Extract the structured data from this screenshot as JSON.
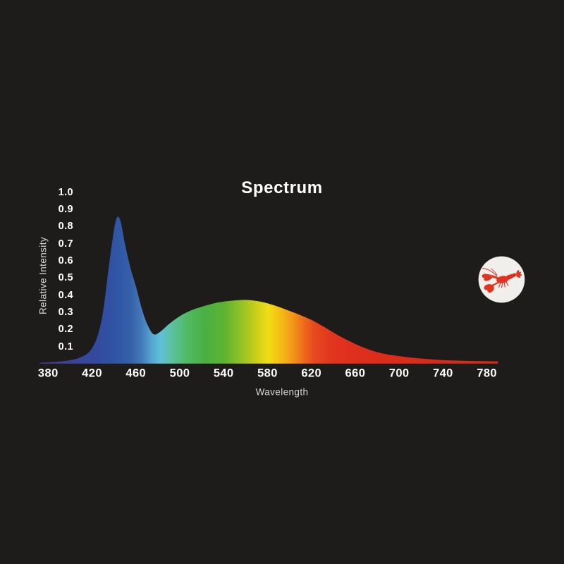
{
  "page": {
    "background": "#1e1c1b"
  },
  "text_colors": {
    "title": "#ffffff",
    "ticks": "#ffffff",
    "axis_titles": "#d8d6d3"
  },
  "chart_data": {
    "type": "area",
    "title": "Spectrum",
    "xlabel": "Wavelength",
    "ylabel": "Relative Intensity",
    "xlim": [
      372,
      790
    ],
    "ylim": [
      0,
      1.0
    ],
    "grid": false,
    "legend": false,
    "x_ticks": [
      "380",
      "420",
      "460",
      "500",
      "540",
      "580",
      "620",
      "660",
      "700",
      "740",
      "780"
    ],
    "y_ticks": [
      "1.0",
      "0.9",
      "0.8",
      "0.7",
      "0.6",
      "0.5",
      "0.4",
      "0.3",
      "0.2",
      "0.1"
    ],
    "series": [
      {
        "name": "relative-spectral-intensity",
        "fill": "wavelength-rainbow-gradient",
        "points": [
          [
            372,
            0.004
          ],
          [
            380,
            0.008
          ],
          [
            390,
            0.012
          ],
          [
            400,
            0.02
          ],
          [
            408,
            0.033
          ],
          [
            415,
            0.055
          ],
          [
            420,
            0.09
          ],
          [
            425,
            0.16
          ],
          [
            430,
            0.3
          ],
          [
            435,
            0.55
          ],
          [
            440,
            0.78
          ],
          [
            443,
            0.855
          ],
          [
            446,
            0.83
          ],
          [
            450,
            0.7
          ],
          [
            455,
            0.56
          ],
          [
            460,
            0.45
          ],
          [
            465,
            0.33
          ],
          [
            470,
            0.235
          ],
          [
            476,
            0.172
          ],
          [
            482,
            0.185
          ],
          [
            490,
            0.23
          ],
          [
            500,
            0.277
          ],
          [
            510,
            0.31
          ],
          [
            520,
            0.332
          ],
          [
            530,
            0.35
          ],
          [
            540,
            0.362
          ],
          [
            550,
            0.369
          ],
          [
            560,
            0.372
          ],
          [
            570,
            0.366
          ],
          [
            580,
            0.352
          ],
          [
            590,
            0.332
          ],
          [
            600,
            0.308
          ],
          [
            610,
            0.283
          ],
          [
            620,
            0.255
          ],
          [
            630,
            0.22
          ],
          [
            640,
            0.182
          ],
          [
            650,
            0.146
          ],
          [
            660,
            0.115
          ],
          [
            670,
            0.088
          ],
          [
            680,
            0.067
          ],
          [
            690,
            0.053
          ],
          [
            700,
            0.044
          ],
          [
            710,
            0.036
          ],
          [
            720,
            0.03
          ],
          [
            730,
            0.025
          ],
          [
            740,
            0.021
          ],
          [
            750,
            0.018
          ],
          [
            760,
            0.016
          ],
          [
            770,
            0.015
          ],
          [
            780,
            0.014
          ],
          [
            790,
            0.013
          ]
        ]
      }
    ],
    "features": {
      "blue_peak": {
        "wavelength_nm": 443,
        "intensity": 0.85
      },
      "dip": {
        "wavelength_nm": 476,
        "intensity": 0.17
      },
      "broad_peak": {
        "wavelength_nm": 560,
        "intensity": 0.37
      }
    },
    "gradient_stops": [
      {
        "nm": 372,
        "color": "#4a3a8a"
      },
      {
        "nm": 392,
        "color": "#3f3f96"
      },
      {
        "nm": 408,
        "color": "#38459c"
      },
      {
        "nm": 422,
        "color": "#34499e"
      },
      {
        "nm": 440,
        "color": "#3153a3"
      },
      {
        "nm": 455,
        "color": "#3560a9"
      },
      {
        "nm": 465,
        "color": "#4379b8"
      },
      {
        "nm": 473,
        "color": "#549fce"
      },
      {
        "nm": 482,
        "color": "#5fc0da"
      },
      {
        "nm": 493,
        "color": "#5cc19e"
      },
      {
        "nm": 506,
        "color": "#52ba66"
      },
      {
        "nm": 522,
        "color": "#49b044"
      },
      {
        "nm": 540,
        "color": "#5cb232"
      },
      {
        "nm": 556,
        "color": "#93c226"
      },
      {
        "nm": 569,
        "color": "#c9ce1b"
      },
      {
        "nm": 581,
        "color": "#f0dd16"
      },
      {
        "nm": 592,
        "color": "#f5bd14"
      },
      {
        "nm": 602,
        "color": "#f29a18"
      },
      {
        "nm": 613,
        "color": "#ed6b1c"
      },
      {
        "nm": 623,
        "color": "#e7481e"
      },
      {
        "nm": 640,
        "color": "#e1341f"
      },
      {
        "nm": 668,
        "color": "#dd2e1c"
      },
      {
        "nm": 700,
        "color": "#da2b1b"
      },
      {
        "nm": 790,
        "color": "#d6291a"
      }
    ]
  },
  "badge": {
    "icon": "lobster-icon",
    "circle_color": "#f1efec",
    "lobster_color": "#e23220",
    "lobster_shade": "#ae1d0e"
  }
}
